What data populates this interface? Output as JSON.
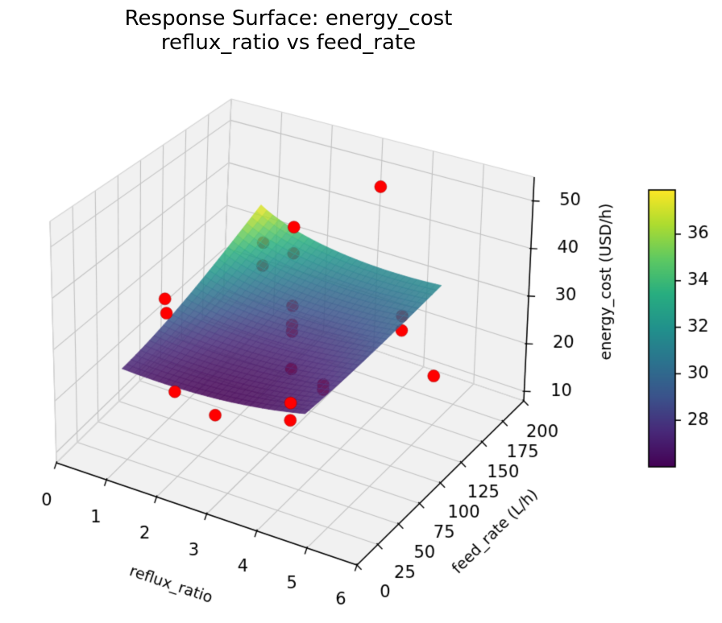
{
  "title": {
    "line1": "Response Surface: energy_cost",
    "line2": "reflux_ratio vs feed_rate"
  },
  "chart_data": {
    "type": "surface3d+scatter",
    "x_axis": {
      "label": "reflux_ratio",
      "min": 0,
      "max": 6,
      "ticks": [
        0,
        1,
        2,
        3,
        4,
        5,
        6
      ]
    },
    "y_axis": {
      "label": "feed_rate (L/h)",
      "min": 0,
      "max": 200,
      "ticks": [
        0,
        25,
        50,
        75,
        100,
        125,
        150,
        175,
        200
      ]
    },
    "z_axis": {
      "label": "energy_cost (USD/h)",
      "min": 8,
      "max": 55,
      "ticks": [
        10,
        20,
        30,
        40,
        50
      ]
    },
    "colorbar": {
      "colormap": "viridis",
      "min": 26.0,
      "max": 37.9,
      "ticks": [
        28,
        30,
        32,
        34,
        36
      ]
    },
    "surface": {
      "x_min": 1.0,
      "x_max": 4.6,
      "y_min": 20,
      "y_max": 180,
      "grid_n": 30,
      "alpha": 0.84,
      "model": {
        "base": 24.5,
        "ridge_coef": 11.0,
        "ridge_y_exp": 1.8,
        "ridge_x_exp": 0.55,
        "quad_coef": 0.35,
        "quad_center": 2.8,
        "y_norm": 180
      }
    },
    "scatter": {
      "color": "#ff0000",
      "marker_radius": 7.5,
      "points": [
        {
          "reflux_ratio": 4.0,
          "feed_rate": 140,
          "energy_cost": 53.0,
          "occluded": false
        },
        {
          "reflux_ratio": 3.0,
          "feed_rate": 100,
          "energy_cost": 47.0,
          "occluded": false
        },
        {
          "reflux_ratio": 1.4,
          "feed_rate": 160,
          "energy_cost": 32.5,
          "occluded": true
        },
        {
          "reflux_ratio": 3.0,
          "feed_rate": 100,
          "energy_cost": 42.0,
          "occluded": true
        },
        {
          "reflux_ratio": 1.4,
          "feed_rate": 160,
          "energy_cost": 27.5,
          "occluded": true
        },
        {
          "reflux_ratio": 3.0,
          "feed_rate": 100,
          "energy_cost": 32.0,
          "occluded": true
        },
        {
          "reflux_ratio": 3.0,
          "feed_rate": 100,
          "energy_cost": 28.4,
          "occluded": true
        },
        {
          "reflux_ratio": 3.0,
          "feed_rate": 100,
          "energy_cost": 27.1,
          "occluded": true
        },
        {
          "reflux_ratio": 4.5,
          "feed_rate": 140,
          "energy_cost": 29.0,
          "occluded": true
        },
        {
          "reflux_ratio": 4.5,
          "feed_rate": 140,
          "energy_cost": 26.2,
          "occluded": true
        },
        {
          "reflux_ratio": 5.0,
          "feed_rate": 150,
          "energy_cost": 17.5,
          "occluded": false
        },
        {
          "reflux_ratio": 1.0,
          "feed_rate": 70,
          "energy_cost": 32.5,
          "occluded": false
        },
        {
          "reflux_ratio": 1.2,
          "feed_rate": 60,
          "energy_cost": 31.5,
          "occluded": false
        },
        {
          "reflux_ratio": 1.7,
          "feed_rate": 40,
          "energy_cost": 20.5,
          "occluded": false
        },
        {
          "reflux_ratio": 2.5,
          "feed_rate": 40,
          "energy_cost": 18.3,
          "occluded": false
        },
        {
          "reflux_ratio": 3.0,
          "feed_rate": 100,
          "energy_cost": 13.5,
          "occluded": false
        },
        {
          "reflux_ratio": 3.0,
          "feed_rate": 100,
          "energy_cost": 10.2,
          "occluded": false
        },
        {
          "reflux_ratio": 3.0,
          "feed_rate": 100,
          "energy_cost": 20.0,
          "occluded": true
        },
        {
          "reflux_ratio": 3.8,
          "feed_rate": 90,
          "energy_cost": 20.6,
          "occluded": true
        },
        {
          "reflux_ratio": 3.8,
          "feed_rate": 90,
          "energy_cost": 19.7,
          "occluded": true
        }
      ]
    }
  },
  "style": {
    "background": "#ffffff",
    "pane_color": "#f1f1f1",
    "grid_color": "#c2c2c2",
    "pane_edge_color": "#d5d5d5",
    "spine_color": "#000000",
    "text_color": "#000000",
    "scatter_color": "#ff0000",
    "viridis_stops": [
      [
        0.0,
        "#440154"
      ],
      [
        0.125,
        "#482878"
      ],
      [
        0.25,
        "#3b528b"
      ],
      [
        0.375,
        "#2c728e"
      ],
      [
        0.5,
        "#21918c"
      ],
      [
        0.625,
        "#28ae80"
      ],
      [
        0.75,
        "#5ec962"
      ],
      [
        0.875,
        "#addc30"
      ],
      [
        1.0,
        "#fde725"
      ]
    ]
  }
}
